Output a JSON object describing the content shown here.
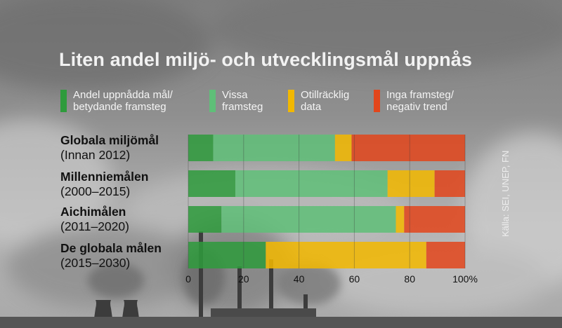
{
  "chart_data": {
    "type": "bar",
    "orientation": "horizontal",
    "stacked": true,
    "title": "Liten andel miljö- och utvecklingsmål uppnås",
    "categories": [
      {
        "name": "Globala miljömål",
        "period": "(Innan 2012)"
      },
      {
        "name": "Millenniemålen",
        "period": "(2000–2015)"
      },
      {
        "name": "Aichimålen",
        "period": "(2011–2020)"
      },
      {
        "name": "De globala målen",
        "period": "(2015–2030)"
      }
    ],
    "series": [
      {
        "name": "Andel uppnådda mål/ betydande framsteg",
        "color": "#2e9b3c",
        "values": [
          9,
          17,
          12,
          28
        ]
      },
      {
        "name": "Vissa framsteg",
        "color": "#5fbf78",
        "values": [
          44,
          55,
          63,
          0
        ]
      },
      {
        "name": "Otillräcklig data",
        "color": "#f2b800",
        "values": [
          6,
          17,
          3,
          58
        ]
      },
      {
        "name": "Inga framsteg/ negativ trend",
        "color": "#e2461c",
        "values": [
          41,
          11,
          22,
          14
        ]
      }
    ],
    "xlim": [
      0,
      100
    ],
    "xticks": [
      "0",
      "20",
      "40",
      "60",
      "80",
      "100%"
    ],
    "legend_position": "top",
    "grid": true
  },
  "legend": [
    {
      "line1": "Andel uppnådda mål/",
      "line2": "betydande framsteg",
      "color": "#2e9b3c"
    },
    {
      "line1": "Vissa",
      "line2": "framsteg",
      "color": "#5fbf78"
    },
    {
      "line1": "Otillräcklig",
      "line2": "data",
      "color": "#f2b800"
    },
    {
      "line1": "Inga framsteg/",
      "line2": "negativ trend",
      "color": "#e2461c"
    }
  ],
  "source": "Källa: SEI, UNEP, FN"
}
